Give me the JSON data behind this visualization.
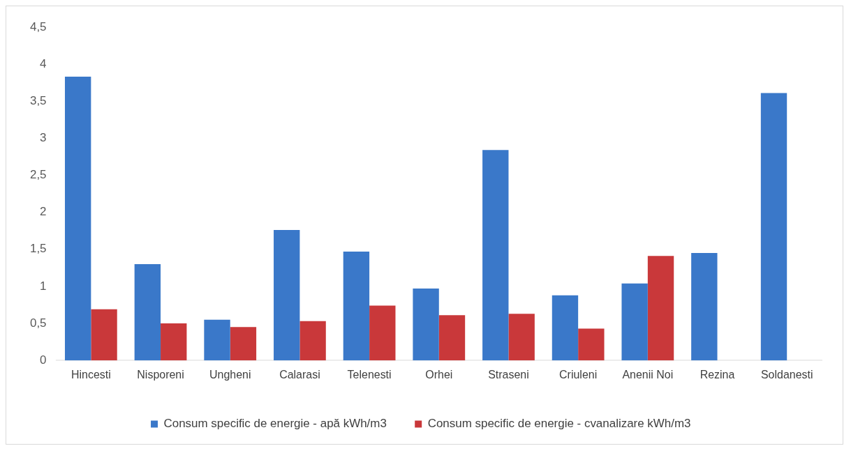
{
  "chart_data": {
    "type": "bar",
    "categories": [
      "Hincesti",
      "Nisporeni",
      "Ungheni",
      "Calarasi",
      "Telenesti",
      "Orhei",
      "Straseni",
      "Criuleni",
      "Anenii Noi",
      "Rezina",
      "Soldanesti"
    ],
    "series": [
      {
        "name": "Consum specific de energie - apă kWh/m3",
        "color": "#3a78c9",
        "values": [
          3.83,
          1.3,
          0.55,
          1.76,
          1.47,
          0.97,
          2.84,
          0.88,
          1.04,
          1.45,
          3.61
        ]
      },
      {
        "name": "Consum specific de energie - cvanalizare kWh/m3",
        "color": "#c9383a",
        "values": [
          0.69,
          0.5,
          0.45,
          0.53,
          0.74,
          0.61,
          0.63,
          0.43,
          1.41,
          null,
          null
        ]
      }
    ],
    "ylim": [
      0,
      4.5
    ],
    "yticks": [
      0,
      {
        "value": 0.5,
        "label": "0,5"
      },
      1,
      {
        "value": 1.5,
        "label": "1,5"
      },
      2,
      {
        "value": 2.5,
        "label": "2,5"
      },
      3,
      {
        "value": 3.5,
        "label": "3,5"
      },
      4,
      {
        "value": 4.5,
        "label": "4,5"
      }
    ],
    "grid": false,
    "legend": "bottom"
  }
}
